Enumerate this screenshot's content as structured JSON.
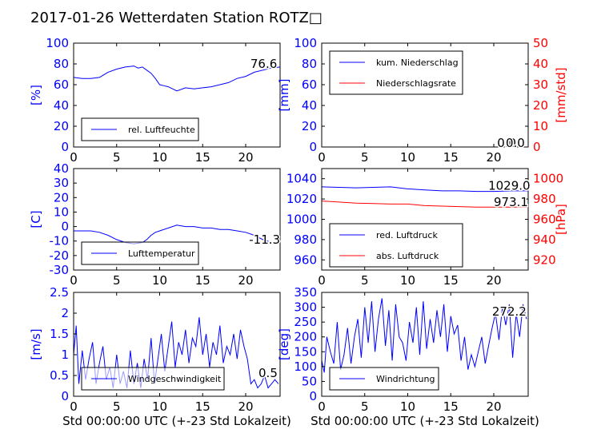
{
  "figure": {
    "title": "2017-01-26 Wetterdaten Station ROTZ□"
  },
  "chart_data": [
    {
      "id": "humidity",
      "type": "line",
      "xlim": [
        0,
        24
      ],
      "ylim": [
        0,
        100
      ],
      "xticks": [
        0,
        5,
        10,
        15,
        20
      ],
      "yticks": [
        0,
        20,
        40,
        60,
        80,
        100
      ],
      "ylabel": "[%]",
      "xlabel": "",
      "legend_position": "lower-left",
      "series": [
        {
          "name": "rel. Luftfeuchte",
          "color": "#0000ff",
          "x": [
            0,
            1,
            2,
            3,
            4,
            5,
            6,
            7,
            7.5,
            8,
            8.5,
            9,
            9.5,
            10,
            10.5,
            11,
            11.5,
            12,
            13,
            14,
            15,
            16,
            17,
            18,
            19,
            20,
            21,
            22,
            23,
            24
          ],
          "y": [
            67,
            66,
            66,
            67,
            72,
            75,
            77,
            78,
            76,
            77,
            74,
            71,
            66,
            60,
            59,
            58,
            56,
            54,
            57,
            56,
            57,
            58,
            60,
            62,
            66,
            68,
            72,
            74,
            76,
            77
          ]
        }
      ],
      "annotations": [
        {
          "text": "76.6",
          "x": 22.1,
          "y": 80
        }
      ]
    },
    {
      "id": "precip",
      "type": "line",
      "xlim": [
        0,
        24
      ],
      "ylim": [
        0,
        100
      ],
      "xticks": [
        0,
        5,
        10,
        15,
        20
      ],
      "yticks": [
        0,
        20,
        40,
        60,
        80,
        100
      ],
      "ylabel": "[mm]",
      "y2lim": [
        0,
        50
      ],
      "y2ticks": [
        0,
        10,
        20,
        30,
        40,
        50
      ],
      "y2label": "[mm/std]",
      "xlabel": "",
      "legend_position": "upper-left",
      "series": [
        {
          "name": "kum. Niederschlag",
          "color": "#0000ff",
          "axis": "left",
          "x": [
            0,
            24
          ],
          "y": [
            0,
            0
          ]
        },
        {
          "name": "Niederschlagsrate",
          "color": "#ff0000",
          "axis": "right",
          "x": [
            0,
            24
          ],
          "y": [
            0,
            0
          ]
        }
      ],
      "annotations": [
        {
          "text": "0.0",
          "x": 21.5,
          "y": 4
        },
        {
          "text": "0.0",
          "x": 22.5,
          "y": 4
        }
      ]
    },
    {
      "id": "temp",
      "type": "line",
      "xlim": [
        0,
        24
      ],
      "ylim": [
        -30,
        40
      ],
      "xticks": [
        0,
        5,
        10,
        15,
        20
      ],
      "yticks": [
        -30,
        -20,
        -10,
        0,
        10,
        20,
        30,
        40
      ],
      "ylabel": "[C]",
      "xlabel": "",
      "legend_position": "lower-left",
      "series": [
        {
          "name": "Lufttemperatur",
          "color": "#0000ff",
          "x": [
            0,
            1,
            2,
            3,
            4,
            5,
            6,
            7,
            8,
            8.5,
            9,
            9.5,
            10,
            11,
            12,
            13,
            14,
            15,
            16,
            17,
            18,
            19,
            20,
            21,
            22,
            23,
            24
          ],
          "y": [
            -3,
            -3,
            -3,
            -4,
            -6,
            -9,
            -11,
            -12,
            -11,
            -9,
            -6,
            -4,
            -3,
            -1,
            1,
            0,
            0,
            -1,
            -1,
            -2,
            -2,
            -3,
            -4,
            -6,
            -9,
            -11,
            -11
          ]
        }
      ],
      "annotations": [
        {
          "text": "-11.3",
          "x": 22.2,
          "y": -9
        }
      ]
    },
    {
      "id": "pressure",
      "type": "line",
      "xlim": [
        0,
        24
      ],
      "ylim": [
        950,
        1050
      ],
      "xticks": [
        0,
        5,
        10,
        15,
        20
      ],
      "yticks": [
        960,
        980,
        1000,
        1020,
        1040
      ],
      "ylabel": "",
      "y2lim": [
        910,
        1010
      ],
      "y2ticks": [
        920,
        940,
        960,
        980,
        1000
      ],
      "y2label": "[hPa]",
      "xlabel": "",
      "legend_position": "lower-left",
      "series": [
        {
          "name": "red. Luftdruck",
          "color": "#0000ff",
          "axis": "left",
          "x": [
            0,
            2,
            4,
            6,
            8,
            10,
            12,
            14,
            16,
            18,
            20,
            22,
            24
          ],
          "y": [
            1032,
            1031.5,
            1031,
            1031.5,
            1032,
            1030,
            1029,
            1028,
            1028,
            1027.5,
            1027.5,
            1028,
            1028
          ]
        },
        {
          "name": "abs. Luftdruck",
          "color": "#ff0000",
          "axis": "left",
          "x": [
            0,
            2,
            4,
            6,
            8,
            10,
            12,
            14,
            16,
            18,
            20,
            22,
            24
          ],
          "y": [
            1018,
            1017,
            1016,
            1015.5,
            1015,
            1015,
            1013.5,
            1013,
            1012.5,
            1012,
            1012,
            1012,
            1012
          ]
        }
      ],
      "annotations": [
        {
          "text": "1029.0",
          "x": 21.8,
          "y": 1033
        },
        {
          "text": "973.1",
          "x": 22.0,
          "y": 1017
        }
      ]
    },
    {
      "id": "wind",
      "type": "line",
      "xlim": [
        0,
        24
      ],
      "ylim": [
        0,
        2.5
      ],
      "xticks": [
        0,
        5,
        10,
        15,
        20
      ],
      "yticks": [
        0,
        0.5,
        1.0,
        1.5,
        2.0,
        2.5
      ],
      "ylabel": "[m/s]",
      "xlabel": "Std 00:00:00 UTC (+-23 Std Lokalzeit)",
      "legend_position": "lower-left",
      "series": [
        {
          "name": "Windgeschwindigkeit",
          "color": "#0000ff",
          "x": [
            0,
            0.3,
            0.6,
            1,
            1.4,
            1.8,
            2.2,
            2.6,
            3,
            3.4,
            3.8,
            4.2,
            4.6,
            5,
            5.4,
            5.8,
            6.2,
            6.6,
            7,
            7.4,
            7.8,
            8.2,
            8.6,
            9,
            9.4,
            9.8,
            10.2,
            10.6,
            11,
            11.4,
            11.8,
            12.2,
            12.6,
            13,
            13.4,
            13.8,
            14.2,
            14.6,
            15,
            15.4,
            15.8,
            16.2,
            16.6,
            17,
            17.4,
            17.8,
            18.2,
            18.6,
            19,
            19.4,
            19.8,
            20.2,
            20.6,
            21,
            21.4,
            21.8,
            22.2,
            22.6,
            23,
            23.4,
            23.8
          ],
          "y": [
            1.0,
            1.7,
            0.3,
            1.1,
            0.4,
            0.9,
            1.3,
            0.3,
            0.8,
            1.2,
            0.4,
            0.7,
            0.2,
            1.0,
            0.3,
            0.6,
            0.2,
            1.1,
            0.3,
            0.8,
            0.2,
            0.9,
            0.4,
            1.4,
            0.3,
            0.9,
            1.5,
            0.6,
            1.2,
            1.8,
            0.7,
            1.3,
            1.0,
            1.6,
            0.8,
            1.4,
            1.2,
            1.9,
            1.0,
            1.5,
            0.7,
            1.3,
            1.0,
            1.7,
            0.8,
            1.2,
            1.0,
            1.5,
            0.9,
            1.6,
            1.2,
            0.9,
            0.3,
            0.4,
            0.2,
            0.3,
            0.5,
            0.2,
            0.3,
            0.4,
            0.3
          ]
        }
      ],
      "annotations": [
        {
          "text": "0.5",
          "x": 22.6,
          "y": 0.56
        }
      ]
    },
    {
      "id": "winddir",
      "type": "line",
      "xlim": [
        0,
        24
      ],
      "ylim": [
        0,
        350
      ],
      "xticks": [
        0,
        5,
        10,
        15,
        20
      ],
      "yticks": [
        0,
        50,
        100,
        150,
        200,
        250,
        300,
        350
      ],
      "ylabel": "[deg]",
      "xlabel": "Std 00:00:00 UTC (+-23 Std Lokalzeit)",
      "legend_position": "lower-left",
      "series": [
        {
          "name": "Windrichtung",
          "color": "#0000ff",
          "x": [
            0,
            0.3,
            0.6,
            1,
            1.4,
            1.8,
            2.2,
            2.6,
            3,
            3.4,
            3.8,
            4.2,
            4.6,
            5,
            5.4,
            5.8,
            6.2,
            6.6,
            7,
            7.4,
            7.8,
            8.2,
            8.6,
            9,
            9.4,
            9.8,
            10.2,
            10.6,
            11,
            11.4,
            11.8,
            12.2,
            12.6,
            13,
            13.4,
            13.8,
            14.2,
            14.6,
            15,
            15.4,
            15.8,
            16.2,
            16.6,
            17,
            17.4,
            17.8,
            18.2,
            18.6,
            19,
            19.4,
            19.8,
            20.2,
            20.6,
            21,
            21.4,
            21.8,
            22.2,
            22.6,
            23,
            23.4,
            23.8
          ],
          "y": [
            120,
            80,
            200,
            150,
            110,
            250,
            90,
            140,
            230,
            110,
            200,
            260,
            130,
            300,
            180,
            320,
            150,
            260,
            330,
            170,
            290,
            120,
            310,
            200,
            180,
            120,
            250,
            180,
            300,
            140,
            320,
            160,
            260,
            180,
            290,
            200,
            310,
            150,
            270,
            210,
            240,
            120,
            200,
            90,
            140,
            100,
            150,
            200,
            110,
            170,
            230,
            280,
            190,
            300,
            240,
            310,
            130,
            280,
            200,
            310,
            260
          ]
        }
      ],
      "annotations": [
        {
          "text": "272.2",
          "x": 21.8,
          "y": 285
        }
      ]
    }
  ]
}
